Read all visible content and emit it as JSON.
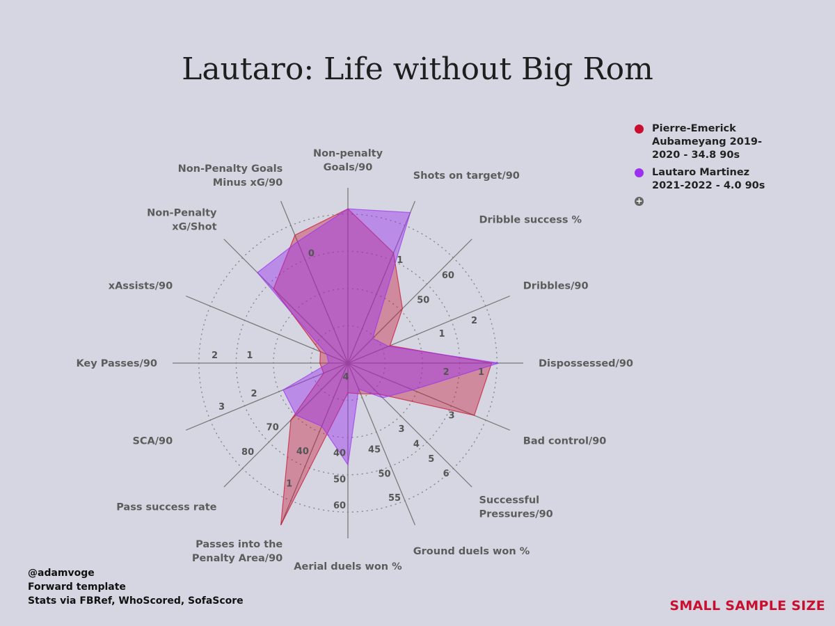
{
  "title": "Lautaro: Life without Big Rom",
  "legend": {
    "items": [
      {
        "label": "Pierre-Emerick Aubameyang 2019-2020 - 34.8 90s",
        "color": "#c8102e"
      },
      {
        "label": "Lautaro Martinez 2021-2022 - 4.0 90s",
        "color": "#9b30f0"
      }
    ],
    "more_icon": "plus-circle-icon"
  },
  "credits": {
    "line1": "@adamvoge",
    "line2": "Forward template",
    "line3": "Stats via FBRef, WhoScored, SofaScore"
  },
  "disclaimer": "SMALL SAMPLE SIZE",
  "chart_data": {
    "type": "radar",
    "title": "Lautaro: Life without Big Rom",
    "axes": [
      {
        "label": "Non-penalty Goals/90",
        "ticks": []
      },
      {
        "label": "Shots on target/90",
        "ticks": [
          "1"
        ]
      },
      {
        "label": "Dribble success %",
        "ticks": [
          "50",
          "60"
        ]
      },
      {
        "label": "Dribbles/90",
        "ticks": [
          "1",
          "2"
        ]
      },
      {
        "label": "Dispossessed/90",
        "ticks": [
          "2",
          "1"
        ]
      },
      {
        "label": "Bad control/90",
        "ticks": [
          "3"
        ]
      },
      {
        "label": "Successful Pressures/90",
        "ticks": [
          "3",
          "4",
          "5",
          "6"
        ]
      },
      {
        "label": "Ground duels won %",
        "ticks": [
          "45",
          "50",
          "55"
        ]
      },
      {
        "label": "Aerial duels won %",
        "ticks": [
          "40",
          "50",
          "60"
        ]
      },
      {
        "label": "Passes into the Penalty Area/90",
        "ticks": [
          "40",
          "1"
        ]
      },
      {
        "label": "Pass success rate",
        "ticks": [
          "70",
          "80"
        ]
      },
      {
        "label": "SCA/90",
        "ticks": [
          "2",
          "3"
        ]
      },
      {
        "label": "Key Passes/90",
        "ticks": [
          "1",
          "2"
        ]
      },
      {
        "label": "xAssists/90",
        "ticks": []
      },
      {
        "label": "Non-Penalty xG/Shot",
        "ticks": []
      },
      {
        "label": "Non-Penalty Goals Minus xG/90",
        "ticks": [
          "0"
        ]
      }
    ],
    "center_label": "4",
    "series": [
      {
        "name": "Pierre-Emerick Aubameyang 2019-2020 - 34.8 90s",
        "color": "#c8102e",
        "values": [
          0.88,
          0.68,
          0.44,
          0.26,
          0.82,
          0.78,
          0.25,
          0.19,
          0.17,
          1.0,
          0.46,
          0.15,
          0.16,
          0.17,
          0.6,
          0.79
        ]
      },
      {
        "name": "Lautaro Martinez 2021-2022 - 4.0 90s",
        "color": "#9b30f0",
        "values": [
          0.88,
          0.93,
          0.2,
          0.25,
          0.86,
          0.4,
          0.28,
          0.16,
          0.58,
          0.39,
          0.42,
          0.4,
          0.11,
          0.13,
          0.73,
          0.75
        ]
      }
    ]
  }
}
